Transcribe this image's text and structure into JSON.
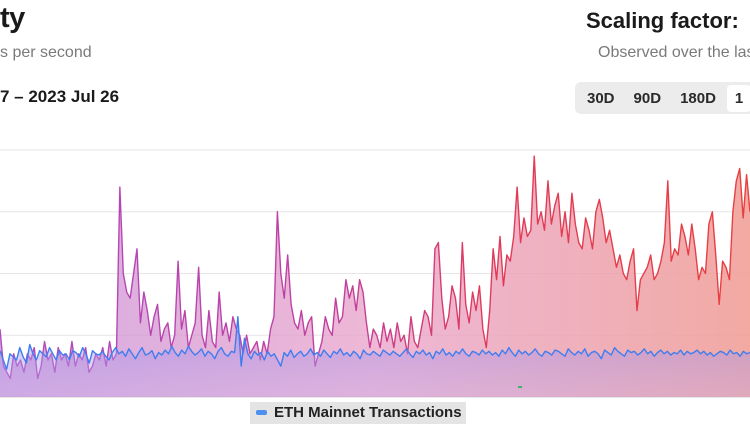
{
  "header": {
    "title": "ty",
    "subtitle": "s per second",
    "date_range": "7 – 2023 Jul 26"
  },
  "scaling": {
    "title": "Scaling factor:",
    "subtitle": "Observed over the las"
  },
  "range_selector": {
    "options": [
      "30D",
      "90D",
      "180D",
      "1"
    ],
    "active_index": 3
  },
  "legend": {
    "label": "ETH Mainnet Transactions",
    "color": "#4d90f0"
  },
  "colors": {
    "aggregate_line_start": "#b04ac0",
    "aggregate_line_end": "#e84040",
    "eth_line": "#3f7df0",
    "gridline": "#e6e6e6"
  },
  "chart_data": {
    "type": "area",
    "title": "",
    "xlabel": "",
    "ylabel": "",
    "ylim": [
      0,
      4
    ],
    "grid": true,
    "legend_position": "bottom-center",
    "series": [
      {
        "name": "",
        "values": [
          1.1,
          0.5,
          0.4,
          0.3,
          0.7,
          0.5,
          0.6,
          0.4,
          0.7,
          0.6,
          0.8,
          0.3,
          0.5,
          0.9,
          0.6,
          0.7,
          0.4,
          0.8,
          0.6,
          0.7,
          0.5,
          0.9,
          0.5,
          0.7,
          0.6,
          0.8,
          0.4,
          0.5,
          0.7,
          0.6,
          0.8,
          0.5,
          0.9,
          0.6,
          0.7,
          3.4,
          2.0,
          1.7,
          1.6,
          2.0,
          2.4,
          1.2,
          1.7,
          1.4,
          1.0,
          1.3,
          1.5,
          0.9,
          1.1,
          1.2,
          0.8,
          1.0,
          2.2,
          1.1,
          1.4,
          0.8,
          1.0,
          1.2,
          2.1,
          1.0,
          0.8,
          1.4,
          0.9,
          0.8,
          1.7,
          1.0,
          1.2,
          0.9,
          1.3,
          1.1,
          1.0,
          0.7,
          1.0,
          0.7,
          0.8,
          0.9,
          0.6,
          0.9,
          0.7,
          1.1,
          1.3,
          3.0,
          2.0,
          1.6,
          2.3,
          1.5,
          1.2,
          1.1,
          1.4,
          1.0,
          1.2,
          1.3,
          0.5,
          0.7,
          0.9,
          1.3,
          1.1,
          1.0,
          1.6,
          1.2,
          1.3,
          1.9,
          1.6,
          1.8,
          1.4,
          1.9,
          1.7,
          1.2,
          0.8,
          1.1,
          1.0,
          0.8,
          1.2,
          0.9,
          1.1,
          0.8,
          1.2,
          0.9,
          1.0,
          0.7,
          1.3,
          0.9,
          0.8,
          1.1,
          1.4,
          1.3,
          1.0,
          2.4,
          2.5,
          1.6,
          1.1,
          1.3,
          1.8,
          1.6,
          1.1,
          2.5,
          1.5,
          1.2,
          1.7,
          1.4,
          1.8,
          1.1,
          0.8,
          1.4,
          2.4,
          1.9,
          2.6,
          1.8,
          2.3,
          2.2,
          2.6,
          3.4,
          2.5,
          2.9,
          2.6,
          2.7,
          3.9,
          2.8,
          3.0,
          2.7,
          3.5,
          2.8,
          3.1,
          3.3,
          2.6,
          3.0,
          2.5,
          3.3,
          2.8,
          2.5,
          2.4,
          2.9,
          2.7,
          2.4,
          3.0,
          3.2,
          2.9,
          2.5,
          2.7,
          2.4,
          2.1,
          2.3,
          2.0,
          1.9,
          2.2,
          2.4,
          1.4,
          1.9,
          2.0,
          2.1,
          2.3,
          1.9,
          2.0,
          2.2,
          2.5,
          3.5,
          2.2,
          2.4,
          2.3,
          2.8,
          2.6,
          2.3,
          2.8,
          2.4,
          1.9,
          2.1,
          2.0,
          2.8,
          3.0,
          2.3,
          1.5,
          2.2,
          2.1,
          1.9,
          3.0,
          3.5,
          3.7,
          2.9,
          3.6,
          3.0
        ]
      },
      {
        "name": "ETH Mainnet Transactions",
        "values": [
          0.75,
          0.6,
          0.45,
          0.7,
          0.65,
          0.6,
          0.8,
          0.65,
          0.55,
          0.85,
          0.7,
          0.6,
          0.75,
          0.7,
          0.65,
          0.8,
          0.7,
          0.6,
          0.75,
          0.68,
          0.7,
          0.6,
          0.75,
          0.72,
          0.65,
          0.8,
          0.7,
          0.55,
          0.75,
          0.7,
          0.68,
          0.74,
          0.66,
          0.6,
          0.72,
          0.8,
          0.7,
          0.74,
          0.66,
          0.78,
          0.7,
          0.62,
          0.72,
          0.8,
          0.68,
          0.7,
          0.75,
          0.62,
          0.72,
          0.68,
          0.76,
          0.7,
          0.82,
          0.72,
          0.66,
          0.76,
          0.7,
          0.82,
          0.74,
          0.68,
          0.72,
          0.78,
          0.66,
          0.74,
          0.7,
          0.62,
          0.74,
          0.8,
          0.7,
          0.66,
          0.74,
          0.72,
          1.3,
          0.5,
          0.95,
          0.7,
          0.62,
          0.74,
          0.68,
          0.72,
          0.6,
          0.74,
          0.66,
          0.7,
          0.6,
          0.5,
          0.72,
          0.66,
          0.76,
          0.64,
          0.7,
          0.74,
          0.66,
          0.7,
          0.78,
          0.68,
          0.72,
          0.66,
          0.76,
          0.7,
          0.64,
          0.74,
          0.7,
          0.78,
          0.68,
          0.72,
          0.66,
          0.74,
          0.7,
          0.62,
          0.76,
          0.7,
          0.68,
          0.74,
          0.7,
          0.66,
          0.76,
          0.72,
          0.68,
          0.74,
          0.7,
          0.66,
          0.72,
          0.78,
          0.7,
          0.64,
          0.74,
          0.7,
          0.76,
          0.68,
          0.72,
          0.62,
          0.74,
          0.7,
          0.78,
          0.68,
          0.72,
          0.66,
          0.74,
          0.7,
          0.78,
          0.7,
          0.66,
          0.74,
          0.72,
          0.68,
          0.76,
          0.7,
          0.74,
          0.68,
          0.72,
          0.66,
          0.76,
          0.7,
          0.8,
          0.72,
          0.66,
          0.76,
          0.7,
          0.74,
          0.68,
          0.72,
          0.78,
          0.7,
          0.66,
          0.74,
          0.72,
          0.68,
          0.76,
          0.74,
          0.7,
          0.66,
          0.78,
          0.72,
          0.68,
          0.74,
          0.7,
          0.78,
          0.66,
          0.72,
          0.74,
          0.7,
          0.62,
          0.76,
          0.72,
          0.68,
          0.8,
          0.74,
          0.7,
          0.66,
          0.76,
          0.72,
          0.74,
          0.68,
          0.72,
          0.78,
          0.7,
          0.74,
          0.66,
          0.72,
          0.76,
          0.7,
          0.74,
          0.68,
          0.72,
          0.7,
          0.76,
          0.68,
          0.74,
          0.7,
          0.72,
          0.76,
          0.7,
          0.74,
          0.68,
          0.72,
          0.66,
          0.7,
          0.74,
          0.72,
          0.68,
          0.76,
          0.7,
          0.72,
          0.66,
          0.74,
          0.7,
          0.72
        ]
      }
    ]
  }
}
